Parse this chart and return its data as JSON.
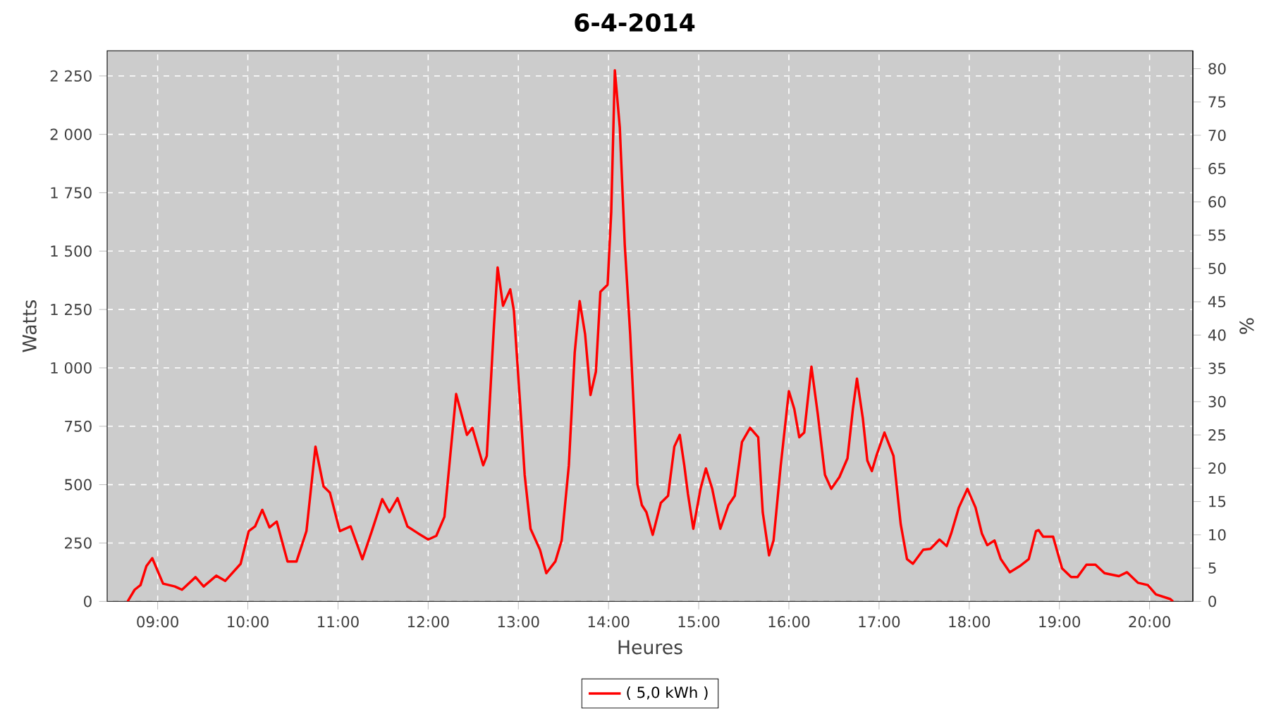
{
  "chart_data": {
    "type": "line",
    "title": "6-4-2014",
    "xlabel": "Heures",
    "ylabel": "Watts",
    "y2label": "%",
    "xlim": [
      8.44,
      20.48
    ],
    "xticks": [
      {
        "value": 9,
        "label": "09:00"
      },
      {
        "value": 10,
        "label": "10:00"
      },
      {
        "value": 11,
        "label": "11:00"
      },
      {
        "value": 12,
        "label": "12:00"
      },
      {
        "value": 13,
        "label": "13:00"
      },
      {
        "value": 14,
        "label": "14:00"
      },
      {
        "value": 15,
        "label": "15:00"
      },
      {
        "value": 16,
        "label": "16:00"
      },
      {
        "value": 17,
        "label": "17:00"
      },
      {
        "value": 18,
        "label": "18:00"
      },
      {
        "value": 19,
        "label": "19:00"
      },
      {
        "value": 20,
        "label": "20:00"
      }
    ],
    "ylim": [
      0,
      2358
    ],
    "yticks": [
      0,
      250,
      500,
      750,
      {
        "value": 1000,
        "label": "1 000"
      },
      {
        "value": 1250,
        "label": "1 250"
      },
      {
        "value": 1500,
        "label": "1 500"
      },
      {
        "value": 1750,
        "label": "1 750"
      },
      {
        "value": 2000,
        "label": "2 000"
      },
      {
        "value": 2250,
        "label": "2 250"
      }
    ],
    "y2lim": [
      0,
      82.7
    ],
    "y2ticks": [
      0,
      5,
      10,
      15,
      20,
      25,
      30,
      35,
      40,
      45,
      50,
      55,
      60,
      65,
      70,
      75,
      80
    ],
    "grid": true,
    "legend": "bottom",
    "marker": "none",
    "line_style": "solid",
    "series": [
      {
        "name": "( 5,0 kWh )",
        "color": "#ff0000",
        "x": [
          8.667,
          8.745,
          8.81,
          8.875,
          8.94,
          9.06,
          9.19,
          9.27,
          9.42,
          9.51,
          9.65,
          9.75,
          9.92,
          10.01,
          10.08,
          10.16,
          10.24,
          10.32,
          10.44,
          10.54,
          10.65,
          10.75,
          10.84,
          10.91,
          11.02,
          11.14,
          11.27,
          11.375,
          11.49,
          11.57,
          11.66,
          11.77,
          11.89,
          12.0,
          12.09,
          12.18,
          12.31,
          12.43,
          12.49,
          12.61,
          12.65,
          12.73,
          12.77,
          12.83,
          12.91,
          12.95,
          13.02,
          13.07,
          13.135,
          13.24,
          13.31,
          13.41,
          13.48,
          13.56,
          13.625,
          13.68,
          13.74,
          13.8,
          13.86,
          13.91,
          13.99,
          14.03,
          14.07,
          14.125,
          14.18,
          14.24,
          14.32,
          14.37,
          14.42,
          14.49,
          14.58,
          14.66,
          14.73,
          14.79,
          14.84,
          14.88,
          14.94,
          15.02,
          15.08,
          15.15,
          15.24,
          15.33,
          15.4,
          15.48,
          15.57,
          15.66,
          15.71,
          15.78,
          15.83,
          15.91,
          16.0,
          16.06,
          16.115,
          16.17,
          16.25,
          16.32,
          16.4,
          16.47,
          16.56,
          16.65,
          16.71,
          16.755,
          16.82,
          16.87,
          16.92,
          16.97,
          17.06,
          17.16,
          17.24,
          17.31,
          17.375,
          17.49,
          17.57,
          17.67,
          17.75,
          17.8,
          17.885,
          17.98,
          18.07,
          18.14,
          18.2,
          18.28,
          18.35,
          18.45,
          18.56,
          18.66,
          18.74,
          18.77,
          18.82,
          18.93,
          19.03,
          19.13,
          19.2,
          19.3,
          19.4,
          19.5,
          19.66,
          19.75,
          19.87,
          19.98,
          20.07,
          20.23,
          20.26
        ],
        "values": [
          0,
          50,
          70,
          151,
          185,
          76,
          64,
          50,
          104,
          64,
          110,
          88,
          161,
          301,
          321,
          392,
          317,
          342,
          171,
          171,
          301,
          663,
          492,
          466,
          301,
          321,
          181,
          301,
          438,
          382,
          442,
          321,
          291,
          265,
          281,
          362,
          888,
          713,
          743,
          583,
          623,
          1185,
          1430,
          1266,
          1336,
          1246,
          844,
          542,
          311,
          221,
          121,
          171,
          261,
          583,
          1065,
          1286,
          1145,
          884,
          984,
          1326,
          1356,
          1667,
          2274,
          2029,
          1527,
          1145,
          502,
          412,
          382,
          285,
          422,
          452,
          663,
          713,
          583,
          462,
          311,
          482,
          569,
          482,
          311,
          412,
          452,
          683,
          743,
          703,
          382,
          197,
          261,
          583,
          900,
          824,
          703,
          723,
          1005,
          804,
          542,
          482,
          532,
          613,
          824,
          954,
          784,
          603,
          558,
          623,
          723,
          623,
          331,
          181,
          161,
          221,
          225,
          265,
          237,
          291,
          402,
          482,
          402,
          291,
          241,
          261,
          181,
          125,
          151,
          181,
          301,
          305,
          277,
          277,
          141,
          104,
          104,
          157,
          157,
          121,
          108,
          125,
          80,
          70,
          30,
          10,
          0
        ]
      }
    ]
  }
}
